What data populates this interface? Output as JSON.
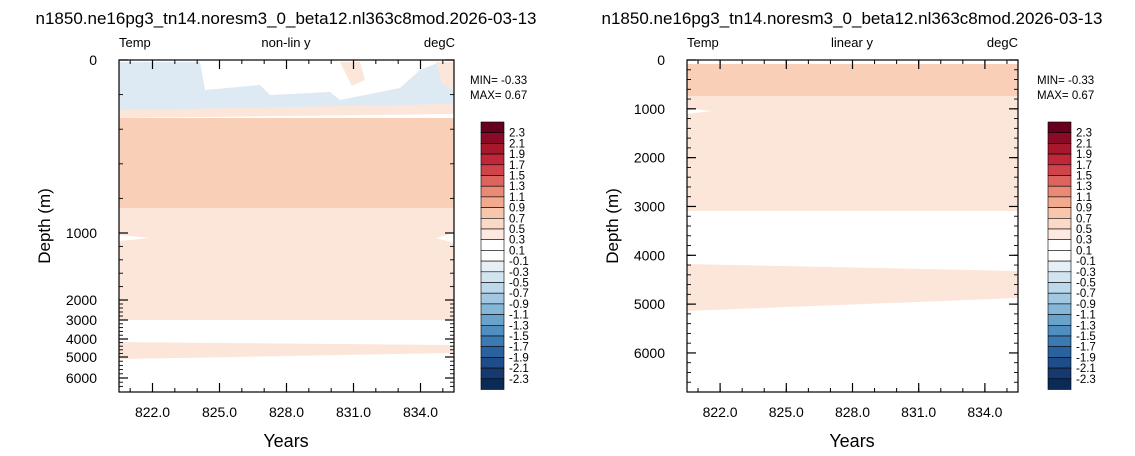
{
  "colors": {
    "neg_light": "#dde9f3",
    "pos_light": "#fce6da",
    "pos_mid": "#f9cfb7",
    "frame": "#000000"
  },
  "chart_data": [
    {
      "type": "contour",
      "title": "n1850.ne16pg3_tn14.noresm3_0_beta12.nl363c8mod.2026-03-13",
      "left_string": "Temp",
      "center_string": "non-lin y",
      "right_string": "degC",
      "xlabel": "Years",
      "ylabel": "Depth (m)",
      "y_scale": "non-linear (stretched upper 1000 m)",
      "x_ticks": [
        "822.0",
        "825.0",
        "828.0",
        "831.0",
        "834.0"
      ],
      "x_tick_values": [
        822,
        825,
        828,
        831,
        834
      ],
      "xlim": [
        820.5,
        835.5
      ],
      "y_ticks": [
        "0",
        "1000",
        "2000",
        "3000",
        "4000",
        "5000",
        "6000"
      ],
      "y_tick_values": [
        0,
        1000,
        2000,
        3000,
        4000,
        5000,
        6000
      ],
      "ylim": [
        6500,
        0
      ],
      "min_label": "MIN= -0.33",
      "max_label": "MAX=  0.67",
      "bands": [
        {
          "level": "-0.1 to 0.1",
          "depth_top": 0,
          "depth_bottom": 250
        },
        {
          "level": "0.5 to 0.7",
          "depth_top": 300,
          "depth_bottom": 850
        },
        {
          "level": "0.1 to 0.3",
          "depth_top": 850,
          "depth_bottom": 3000
        },
        {
          "level": "-0.1 to 0.1",
          "depth_top": 3000,
          "depth_bottom": 4200
        },
        {
          "level": "0.1 to 0.3",
          "depth_top": 4200,
          "depth_bottom": 4800
        },
        {
          "level": "-0.1 to 0.1",
          "depth_top": 4800,
          "depth_bottom": 6500
        }
      ]
    },
    {
      "type": "contour",
      "title": "n1850.ne16pg3_tn14.noresm3_0_beta12.nl363c8mod.2026-03-13",
      "left_string": "Temp",
      "center_string": "linear y",
      "right_string": "degC",
      "xlabel": "Years",
      "ylabel": "Depth (m)",
      "y_scale": "linear",
      "x_ticks": [
        "822.0",
        "825.0",
        "828.0",
        "831.0",
        "834.0"
      ],
      "x_tick_values": [
        822,
        825,
        828,
        831,
        834
      ],
      "xlim": [
        820.5,
        835.5
      ],
      "y_ticks": [
        "0",
        "1000",
        "2000",
        "3000",
        "4000",
        "5000",
        "6000"
      ],
      "y_tick_values": [
        0,
        1000,
        2000,
        3000,
        4000,
        5000,
        6000
      ],
      "ylim": [
        6800,
        0
      ],
      "min_label": "MIN= -0.33",
      "max_label": "MAX=  0.67",
      "bands": [
        {
          "level": "0.5 to 0.7",
          "depth_top": 80,
          "depth_bottom": 700
        },
        {
          "level": "0.1 to 0.3",
          "depth_top": 700,
          "depth_bottom": 3000
        },
        {
          "level": "-0.1 to 0.1",
          "depth_top": 3000,
          "depth_bottom": 4200
        },
        {
          "level": "0.1 to 0.3",
          "depth_top": 4200,
          "depth_bottom": 4800
        },
        {
          "level": "-0.1 to 0.1",
          "depth_top": 4800,
          "depth_bottom": 6800
        }
      ]
    }
  ],
  "colorbar": {
    "labels": [
      "2.3",
      "2.1",
      "1.9",
      "1.7",
      "1.5",
      "1.3",
      "1.1",
      "0.9",
      "0.7",
      "0.5",
      "0.3",
      "0.1",
      "-0.1",
      "-0.3",
      "-0.5",
      "-0.7",
      "-0.9",
      "-1.1",
      "-1.3",
      "-1.5",
      "-1.7",
      "-1.9",
      "-2.1",
      "-2.3"
    ],
    "colors": [
      "#67001f",
      "#8a0b25",
      "#a8182d",
      "#c0283a",
      "#d1434a",
      "#de6460",
      "#e98a75",
      "#f2aa8e",
      "#f8c6ab",
      "#fbd9c7",
      "#fde9df",
      "#ffffff",
      "#ffffff",
      "#e6eff6",
      "#d2e4f0",
      "#bcd8ea",
      "#a2c8e1",
      "#86b6d7",
      "#69a2cb",
      "#4f8ebf",
      "#3a79b2",
      "#2a62a0",
      "#1f4d8a",
      "#163a70",
      "#0c2a56"
    ]
  }
}
